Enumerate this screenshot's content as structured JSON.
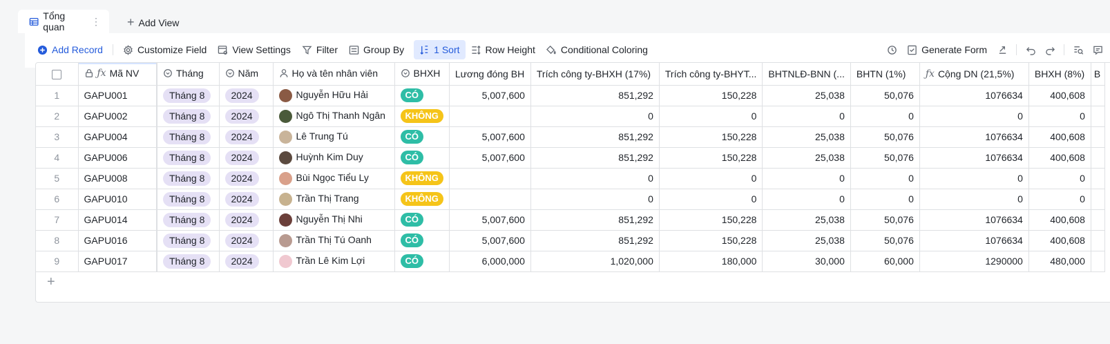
{
  "tabs": {
    "active_label": "Tổng quan",
    "add_view_label": "Add View"
  },
  "toolbar": {
    "add_record": "Add Record",
    "customize_field": "Customize Field",
    "view_settings": "View Settings",
    "filter": "Filter",
    "group_by": "Group By",
    "sort": "1 Sort",
    "row_height": "Row Height",
    "conditional_coloring": "Conditional Coloring",
    "generate_form": "Generate Form"
  },
  "colors": {
    "accent": "#245bdb",
    "yes_tag": "#2ebda6",
    "no_tag": "#f5c419",
    "month_tag": "#e5e0f5"
  },
  "columns": {
    "ma_nv": "Mã NV",
    "thang": "Tháng",
    "nam": "Năm",
    "ho_ten": "Họ và tên nhân viên",
    "bhxh": "BHXH",
    "luong": "Lương đóng BH",
    "cty_bhxh": "Trích công ty-BHXH (17%)",
    "cty_bhyt": "Trích công ty-BHYT...",
    "bhtnld": "BHTNLĐ-BNN (...",
    "bhtn": "BHTN (1%)",
    "cong_dn": "Cộng DN (21,5%)",
    "bhxh8": "BHXH (8%)",
    "overflow": "B"
  },
  "rows": [
    {
      "n": "1",
      "ma": "GAPU001",
      "thang": "Tháng 8",
      "nam": "2024",
      "ten": "Nguyễn Hữu Hải",
      "bhxh": "CÓ",
      "luong": "5,007,600",
      "c1": "851,292",
      "c2": "150,228",
      "c3": "25,038",
      "c4": "50,076",
      "c5": "1076634",
      "c6": "400,608"
    },
    {
      "n": "2",
      "ma": "GAPU002",
      "thang": "Tháng 8",
      "nam": "2024",
      "ten": "Ngô Thị Thanh Ngân",
      "bhxh": "KHÔNG",
      "luong": "",
      "c1": "0",
      "c2": "0",
      "c3": "0",
      "c4": "0",
      "c5": "0",
      "c6": "0"
    },
    {
      "n": "3",
      "ma": "GAPU004",
      "thang": "Tháng 8",
      "nam": "2024",
      "ten": "Lê Trung Tú",
      "bhxh": "CÓ",
      "luong": "5,007,600",
      "c1": "851,292",
      "c2": "150,228",
      "c3": "25,038",
      "c4": "50,076",
      "c5": "1076634",
      "c6": "400,608"
    },
    {
      "n": "4",
      "ma": "GAPU006",
      "thang": "Tháng 8",
      "nam": "2024",
      "ten": "Huỳnh Kim Duy",
      "bhxh": "CÓ",
      "luong": "5,007,600",
      "c1": "851,292",
      "c2": "150,228",
      "c3": "25,038",
      "c4": "50,076",
      "c5": "1076634",
      "c6": "400,608"
    },
    {
      "n": "5",
      "ma": "GAPU008",
      "thang": "Tháng 8",
      "nam": "2024",
      "ten": "Bùi Ngọc Tiểu Ly",
      "bhxh": "KHÔNG",
      "luong": "",
      "c1": "0",
      "c2": "0",
      "c3": "0",
      "c4": "0",
      "c5": "0",
      "c6": "0"
    },
    {
      "n": "6",
      "ma": "GAPU010",
      "thang": "Tháng 8",
      "nam": "2024",
      "ten": "Trần Thị Trang",
      "bhxh": "KHÔNG",
      "luong": "",
      "c1": "0",
      "c2": "0",
      "c3": "0",
      "c4": "0",
      "c5": "0",
      "c6": "0"
    },
    {
      "n": "7",
      "ma": "GAPU014",
      "thang": "Tháng 8",
      "nam": "2024",
      "ten": "Nguyễn Thị  Nhi",
      "bhxh": "CÓ",
      "luong": "5,007,600",
      "c1": "851,292",
      "c2": "150,228",
      "c3": "25,038",
      "c4": "50,076",
      "c5": "1076634",
      "c6": "400,608"
    },
    {
      "n": "8",
      "ma": "GAPU016",
      "thang": "Tháng 8",
      "nam": "2024",
      "ten": "Trần Thị Tú Oanh",
      "bhxh": "CÓ",
      "luong": "5,007,600",
      "c1": "851,292",
      "c2": "150,228",
      "c3": "25,038",
      "c4": "50,076",
      "c5": "1076634",
      "c6": "400,608"
    },
    {
      "n": "9",
      "ma": "GAPU017",
      "thang": "Tháng 8",
      "nam": "2024",
      "ten": "Trần Lê Kim Lợi",
      "bhxh": "CÓ",
      "luong": "6,000,000",
      "c1": "1,020,000",
      "c2": "180,000",
      "c3": "30,000",
      "c4": "60,000",
      "c5": "1290000",
      "c6": "480,000"
    }
  ],
  "avatar_colors": [
    "#8a5a44",
    "#4a5a3a",
    "#c9b49a",
    "#5b4a3f",
    "#d9a08a",
    "#c7b28f",
    "#6b3f3a",
    "#b89a90",
    "#f0c8d0"
  ]
}
